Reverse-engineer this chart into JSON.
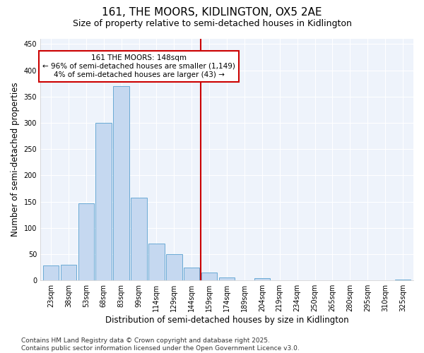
{
  "title": "161, THE MOORS, KIDLINGTON, OX5 2AE",
  "subtitle": "Size of property relative to semi-detached houses in Kidlington",
  "xlabel": "Distribution of semi-detached houses by size in Kidlington",
  "ylabel": "Number of semi-detached properties",
  "categories": [
    "23sqm",
    "38sqm",
    "53sqm",
    "68sqm",
    "83sqm",
    "99sqm",
    "114sqm",
    "129sqm",
    "144sqm",
    "159sqm",
    "174sqm",
    "189sqm",
    "204sqm",
    "219sqm",
    "234sqm",
    "250sqm",
    "265sqm",
    "280sqm",
    "295sqm",
    "310sqm",
    "325sqm"
  ],
  "values": [
    28,
    30,
    147,
    300,
    370,
    157,
    70,
    50,
    25,
    15,
    6,
    0,
    4,
    0,
    0,
    0,
    0,
    0,
    0,
    0,
    2
  ],
  "bar_color": "#c5d8f0",
  "bar_edge_color": "#6aaad4",
  "vline_color": "#cc0000",
  "annotation_title": "161 THE MOORS: 148sqm",
  "annotation_line1": "← 96% of semi-detached houses are smaller (1,149)",
  "annotation_line2": "4% of semi-detached houses are larger (43) →",
  "annotation_box_color": "#cc0000",
  "ylim": [
    0,
    460
  ],
  "yticks": [
    0,
    50,
    100,
    150,
    200,
    250,
    300,
    350,
    400,
    450
  ],
  "fig_bg_color": "#ffffff",
  "plot_bg_color": "#eef3fb",
  "grid_color": "#ffffff",
  "footer": "Contains HM Land Registry data © Crown copyright and database right 2025.\nContains public sector information licensed under the Open Government Licence v3.0.",
  "title_fontsize": 11,
  "subtitle_fontsize": 9,
  "axis_label_fontsize": 8.5,
  "tick_fontsize": 7,
  "footer_fontsize": 6.5,
  "annotation_fontsize": 7.5
}
